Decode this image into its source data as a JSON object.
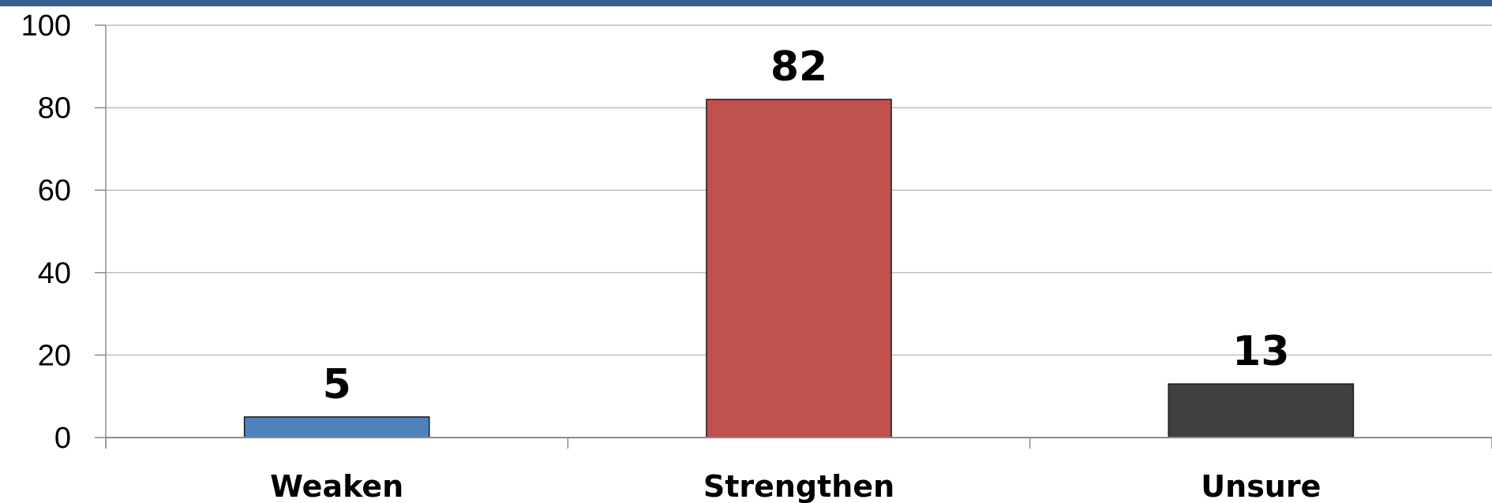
{
  "colors": {
    "top_rule": "#3b5f93",
    "grid": "#bfbfbf",
    "axis": "#8c8c8c",
    "bar_outline": "#1a1a1a"
  },
  "chart_data": {
    "type": "bar",
    "categories": [
      "Weaken",
      "Strengthen",
      "Unsure"
    ],
    "values": [
      5,
      82,
      13
    ],
    "bar_colors": [
      "#4f81bd",
      "#c0504d",
      "#404040"
    ],
    "data_labels": [
      "5",
      "82",
      "13"
    ],
    "yticks": [
      "0",
      "20",
      "40",
      "60",
      "80",
      "100"
    ],
    "ylim": [
      0,
      100
    ],
    "grid": true,
    "legend": "none"
  }
}
